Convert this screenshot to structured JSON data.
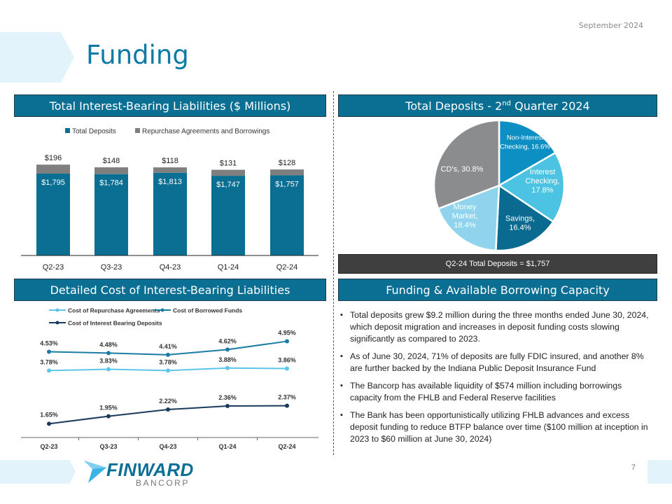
{
  "header": {
    "date": "September  2024",
    "title": "Funding",
    "page_number": "7"
  },
  "logo": {
    "name": "FINWARD",
    "sub": "BANCORP"
  },
  "colors": {
    "brand": "#0b6f94",
    "deposits": "#0b6f94",
    "borrowings": "#7f7f7f"
  },
  "sections": {
    "liabilities": "Total Interest-Bearing  Liabilities ($ Millions)",
    "deposits_q2_prefix": "Total Deposits - 2",
    "deposits_q2_sup": "nd",
    "deposits_q2_suffix": " Quarter 2024",
    "cost": "Detailed Cost of Interest-Bearing  Liabilities",
    "capacity": "Funding & Available Borrowing Capacity"
  },
  "total_deposits_label": "Q2-24 Total Deposits = $1,757",
  "chart_data": [
    {
      "type": "bar",
      "stacked": true,
      "categories": [
        "Q2-23",
        "Q3-23",
        "Q4-23",
        "Q1-24",
        "Q2-24"
      ],
      "legend_position": "top",
      "series": [
        {
          "name": "Total Deposits",
          "values": [
            1795,
            1784,
            1813,
            1747,
            1757
          ],
          "labels": [
            "$1,795",
            "$1,784",
            "$1,813",
            "$1,747",
            "$1,757"
          ],
          "color": "#0b6f94"
        },
        {
          "name": "Repurchase Agreements and Borrowings",
          "values": [
            196,
            148,
            118,
            131,
            128
          ],
          "labels": [
            "$196",
            "$148",
            "$118",
            "$131",
            "$128"
          ],
          "color": "#7f7f7f"
        }
      ],
      "grid": false
    },
    {
      "type": "pie",
      "slices": [
        {
          "label": "Non-Interest Checking, 16.6%",
          "lines": [
            "Non-Interest",
            "Checking, 16.6%"
          ],
          "value": 16.6,
          "color": "#0d8fc4"
        },
        {
          "label": "Interest Checking, 17.8%",
          "lines": [
            "Interest",
            "Checking,",
            "17.8%"
          ],
          "value": 17.8,
          "color": "#4cc3e2"
        },
        {
          "label": "Savings, 16.4%",
          "lines": [
            "Savings,",
            "16.4%"
          ],
          "value": 16.4,
          "color": "#0a6a8f"
        },
        {
          "label": "Money Market, 18.4%",
          "lines": [
            "Money",
            "Market,",
            "18.4%"
          ],
          "value": 18.4,
          "color": "#8fd4ec"
        },
        {
          "label": "CD's, 30.8%",
          "lines": [
            "CD's, 30.8%"
          ],
          "value": 30.8,
          "color": "#8a8c8e"
        }
      ]
    },
    {
      "type": "line",
      "categories": [
        "Q2-23",
        "Q3-23",
        "Q4-23",
        "Q1-24",
        "Q2-24"
      ],
      "legend_position": "top",
      "ylim": [
        1,
        5.5
      ],
      "grid": false,
      "series": [
        {
          "name": "Cost of Repurchase Agreements",
          "values": [
            3.78,
            3.83,
            3.78,
            3.88,
            3.86
          ],
          "labels": [
            "3.78%",
            "3.83%",
            "3.78%",
            "3.88%",
            "3.86%"
          ],
          "color": "#5cc6ea"
        },
        {
          "name": "Cost of Borrowed Funds",
          "values": [
            4.53,
            4.48,
            4.41,
            4.62,
            4.95
          ],
          "labels": [
            "4.53%",
            "4.48%",
            "4.41%",
            "4.62%",
            "4.95%"
          ],
          "color": "#1a7ca3"
        },
        {
          "name": "Cost of Interest Bearing Deposits",
          "values": [
            1.65,
            1.95,
            2.22,
            2.36,
            2.37
          ],
          "labels": [
            "1.65%",
            "1.95%",
            "2.22%",
            "2.36%",
            "2.37%"
          ],
          "color": "#1b3a5c"
        }
      ]
    }
  ],
  "bullets": [
    "Total deposits grew $9.2 million during the three months ended June 30, 2024,  which deposit migration and increases in deposit funding costs slowing significantly as compared to 2023.",
    "As of June 30, 2024,  71% of deposits are fully FDIC insured, and another 8% are further backed by the Indiana Public Deposit Insurance Fund",
    "The Bancorp has available liquidity of $574 million including borrowings capacity from the FHLB and Federal Reserve facilities",
    "The Bank has been opportunistically utilizing FHLB advances and excess deposit funding to reduce BTFP balance over time ($100 million at inception in 2023 to $60 million at June 30, 2024)"
  ]
}
